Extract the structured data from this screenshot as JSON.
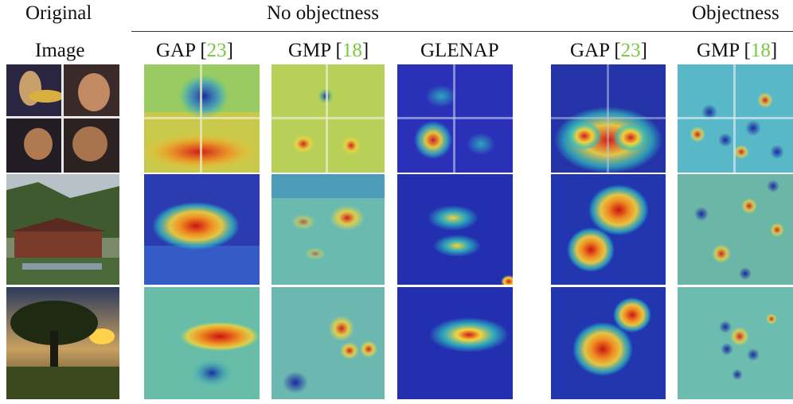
{
  "header": {
    "col_original_line1": "Original",
    "col_original_line2": "Image",
    "group_no_objectness": "No objectness",
    "group_objectness": "Objectness",
    "methods": {
      "gap": {
        "name": "GAP",
        "ref": "23"
      },
      "gmp": {
        "name": "GMP",
        "ref": "18"
      },
      "glenap": {
        "name": "GLENAP"
      }
    }
  },
  "rows": [
    "collage",
    "pagoda-landscape",
    "sunset-tree"
  ],
  "colors": {
    "heat_low": "#2233bb",
    "heat_mid": "#2fc3c0",
    "heat_warm": "#f6d53a",
    "heat_high": "#d11a1a",
    "reference_green": "#77c93f"
  }
}
